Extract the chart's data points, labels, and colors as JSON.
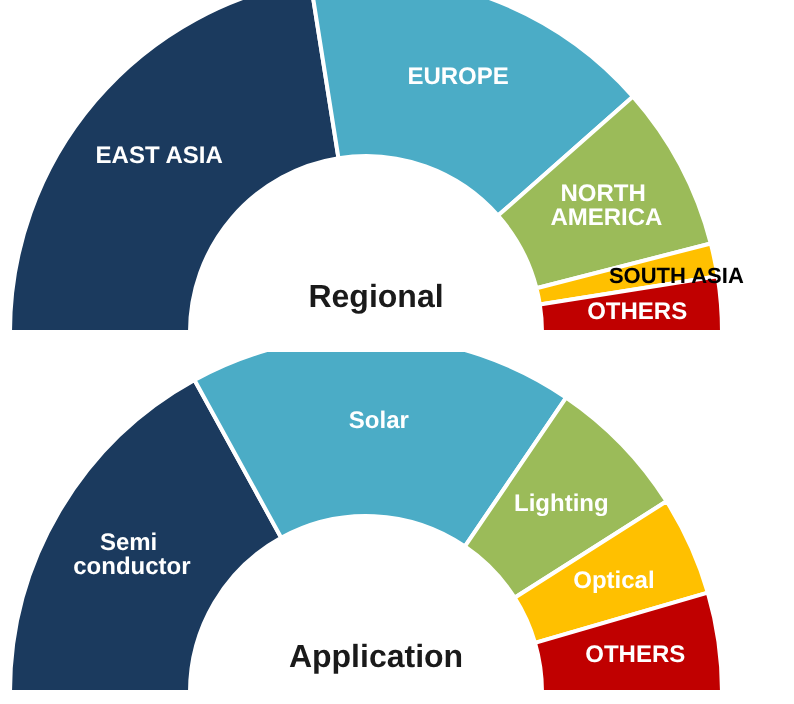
{
  "chart_data": [
    {
      "type": "donut",
      "title": "Regional",
      "categories": [
        "EAST ASIA",
        "EUROPE",
        "NORTH AMERICA",
        "SOUTH ASIA",
        "OTHERS"
      ],
      "values": [
        45,
        32,
        15,
        3,
        5
      ],
      "colors": [
        "#1b3a5e",
        "#4bacc6",
        "#9bbb59",
        "#ffc000",
        "#c00000"
      ]
    },
    {
      "type": "donut",
      "title": "Application",
      "categories": [
        "Semi conductor",
        "Solar",
        "Lighting",
        "Optical",
        "OTHERS"
      ],
      "values": [
        34,
        35,
        13,
        9,
        9
      ],
      "colors": [
        "#1b3a5e",
        "#4bacc6",
        "#9bbb59",
        "#ffc000",
        "#c00000"
      ]
    }
  ]
}
